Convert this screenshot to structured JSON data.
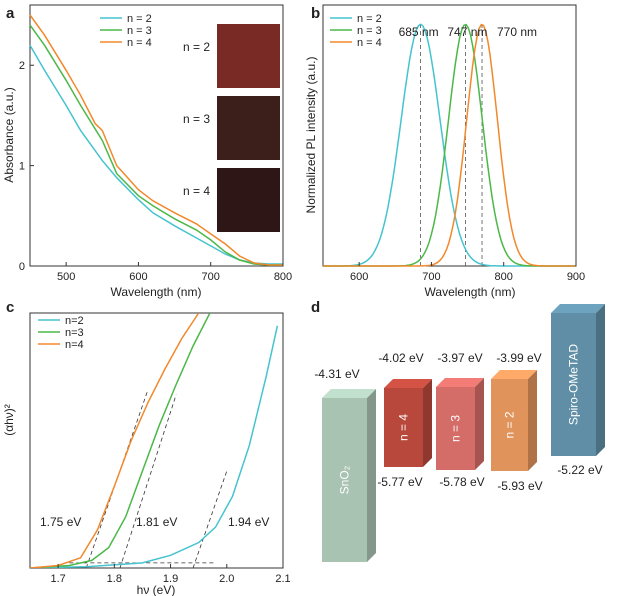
{
  "figure": {
    "panel_labels": {
      "a": "a",
      "b": "b",
      "c": "c",
      "d": "d"
    },
    "colors": {
      "n2": "#45c3cf",
      "n3": "#4cb848",
      "n4": "#f2882c"
    }
  },
  "chart_data": [
    {
      "panel": "a",
      "type": "line",
      "xlabel": "Wavelength (nm)",
      "ylabel": "Absorbance (a.u.)",
      "xlim": [
        450,
        800
      ],
      "ylim": [
        0,
        2.6
      ],
      "xticks": [
        500,
        600,
        700,
        800
      ],
      "yticks": [
        0,
        1,
        2
      ],
      "legend": {
        "placement": "top"
      },
      "series": [
        {
          "name": "n = 2",
          "color": "#45c3cf",
          "x": [
            450,
            470,
            500,
            520,
            550,
            570,
            600,
            620,
            650,
            680,
            700,
            720,
            740,
            760,
            780,
            800
          ],
          "y": [
            2.2,
            1.95,
            1.6,
            1.35,
            1.05,
            0.88,
            0.66,
            0.53,
            0.4,
            0.28,
            0.2,
            0.12,
            0.06,
            0.03,
            0.02,
            0.02
          ]
        },
        {
          "name": "n = 3",
          "color": "#4cb848",
          "x": [
            450,
            470,
            500,
            520,
            550,
            570,
            600,
            620,
            650,
            680,
            700,
            720,
            740,
            760,
            780,
            800
          ],
          "y": [
            2.4,
            2.2,
            1.85,
            1.6,
            1.25,
            0.92,
            0.7,
            0.6,
            0.47,
            0.36,
            0.26,
            0.14,
            0.06,
            0.02,
            0.01,
            0.01
          ]
        },
        {
          "name": "n = 4",
          "color": "#f2882c",
          "x": [
            450,
            470,
            500,
            520,
            540,
            550,
            570,
            600,
            620,
            650,
            680,
            700,
            720,
            740,
            760,
            780,
            800
          ],
          "y": [
            2.5,
            2.3,
            1.95,
            1.7,
            1.42,
            1.35,
            1.0,
            0.76,
            0.65,
            0.53,
            0.42,
            0.32,
            0.22,
            0.1,
            0.03,
            0.01,
            0.01
          ]
        }
      ],
      "inset_labels": [
        "n = 2",
        "n = 3",
        "n = 4"
      ],
      "inset_colors": [
        "#7a2a24",
        "#3c1f1a",
        "#2e1516"
      ]
    },
    {
      "panel": "b",
      "type": "line",
      "xlabel": "Wavelength (nm)",
      "ylabel": "Normalized PL intensity (a.u.)",
      "xlim": [
        550,
        900
      ],
      "xticks": [
        600,
        700,
        800,
        900
      ],
      "ylim": [
        0,
        1.08
      ],
      "legend": {
        "placement": "top-left"
      },
      "series": [
        {
          "name": "n = 2",
          "color": "#45c3cf",
          "peak": 685,
          "width": 38
        },
        {
          "name": "n = 3",
          "color": "#4cb848",
          "peak": 747,
          "width": 33
        },
        {
          "name": "n = 4",
          "color": "#f2882c",
          "peak": 770,
          "width": 30
        }
      ],
      "annotations": [
        "685 nm",
        "747 nm",
        "770 nm"
      ],
      "peak_positions": [
        685,
        747,
        770
      ]
    },
    {
      "panel": "c",
      "type": "line",
      "xlabel": "hν (eV)",
      "ylabel": "(αhν)²",
      "xlim": [
        1.65,
        2.1
      ],
      "xticks": [
        1.7,
        1.8,
        1.9,
        2.0,
        2.1
      ],
      "ylim": [
        0,
        1
      ],
      "legend": {
        "placement": "top-left"
      },
      "series": [
        {
          "name": "n=2",
          "color": "#45c3cf",
          "x": [
            1.65,
            1.75,
            1.85,
            1.9,
            1.95,
            1.98,
            2.01,
            2.04,
            2.07,
            2.09
          ],
          "y": [
            0.0,
            0.005,
            0.02,
            0.05,
            0.1,
            0.16,
            0.28,
            0.48,
            0.75,
            0.95
          ]
        },
        {
          "name": "n=3",
          "color": "#4cb848",
          "x": [
            1.65,
            1.72,
            1.76,
            1.79,
            1.82,
            1.85,
            1.88,
            1.91,
            1.94,
            1.97
          ],
          "y": [
            0.0,
            0.01,
            0.03,
            0.08,
            0.2,
            0.38,
            0.56,
            0.72,
            0.87,
            1.0
          ]
        },
        {
          "name": "n=4",
          "color": "#f2882c",
          "x": [
            1.65,
            1.7,
            1.74,
            1.77,
            1.8,
            1.83,
            1.86,
            1.89,
            1.92,
            1.95
          ],
          "y": [
            0.0,
            0.01,
            0.04,
            0.15,
            0.32,
            0.5,
            0.65,
            0.78,
            0.9,
            1.0
          ]
        }
      ],
      "tangents": [
        {
          "x": [
            1.75,
            1.86
          ],
          "y": [
            0,
            0.7
          ]
        },
        {
          "x": [
            1.81,
            1.91
          ],
          "y": [
            0,
            0.68
          ]
        },
        {
          "x": [
            1.94,
            2.0
          ],
          "y": [
            0,
            0.38
          ]
        }
      ],
      "baseline": {
        "x": [
          1.72,
          1.98
        ],
        "y": [
          0.02,
          0.02
        ]
      },
      "annotations": [
        "1.75 eV",
        "1.81 eV",
        "1.94 eV"
      ]
    },
    {
      "panel": "d",
      "type": "diagram",
      "materials": [
        {
          "label": "SnO₂",
          "top_label": "-4.31 eV",
          "bottom_label": "",
          "color": "#a8c3b2"
        },
        {
          "label": "n = 4",
          "top_label": "-4.02 eV",
          "bottom_label": "-5.77 eV",
          "color": "#b8483b"
        },
        {
          "label": "n = 3",
          "top_label": "-3.97 eV",
          "bottom_label": "-5.78 eV",
          "color": "#d46c67"
        },
        {
          "label": "n = 2",
          "top_label": "-3.99 eV",
          "bottom_label": "-5.93 eV",
          "color": "#e0945b"
        },
        {
          "label": "Spiro-OMeTAD",
          "top_label": "",
          "bottom_label": "-5.22 eV",
          "color": "#5f8ea6"
        }
      ]
    }
  ]
}
